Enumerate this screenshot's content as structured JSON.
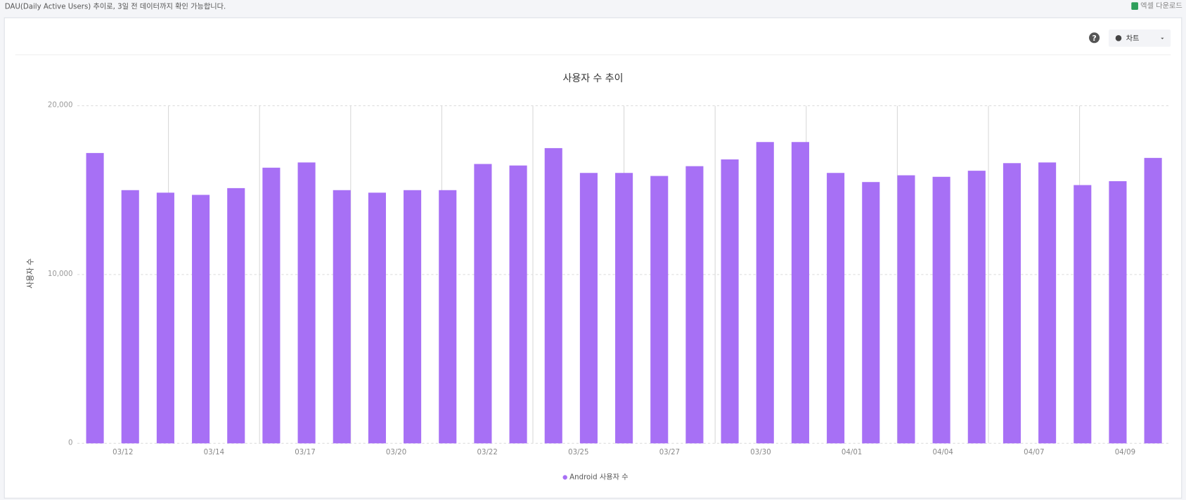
{
  "header": {
    "description": "DAU(Daily Active Users) 추이로, 3일 전 데이터까지 확인 가능합니다.",
    "download": "엑셀 다운로드"
  },
  "toolbar": {
    "help": "?",
    "view": "차트"
  },
  "chart_data": {
    "type": "bar",
    "title": "사용자 수 추이",
    "y_label": "사용자 수",
    "xlabels": [
      "03/12",
      "03/14",
      "03/17",
      "03/20",
      "03/22",
      "03/25",
      "03/27",
      "03/30",
      "04/01",
      "04/04",
      "04/07",
      "04/09"
    ],
    "series": [
      {
        "name": "Android 사용자 수",
        "color": "#a770f5",
        "values": [
          17200,
          15000,
          14850,
          14720,
          15120,
          16330,
          16640,
          15000,
          14850,
          15000,
          15000,
          16550,
          16460,
          17490,
          16020,
          16020,
          15840,
          16420,
          16820,
          17850,
          17850,
          16020,
          15480,
          15880,
          15790,
          16150,
          16600,
          16640,
          15300,
          15530,
          16910
        ]
      }
    ],
    "ylim": [
      0,
      20000
    ],
    "yticks": [
      0,
      {
        "value": 10000,
        "label": "10,000"
      },
      {
        "value": 20000,
        "label": "20,000"
      }
    ],
    "grid": true
  }
}
